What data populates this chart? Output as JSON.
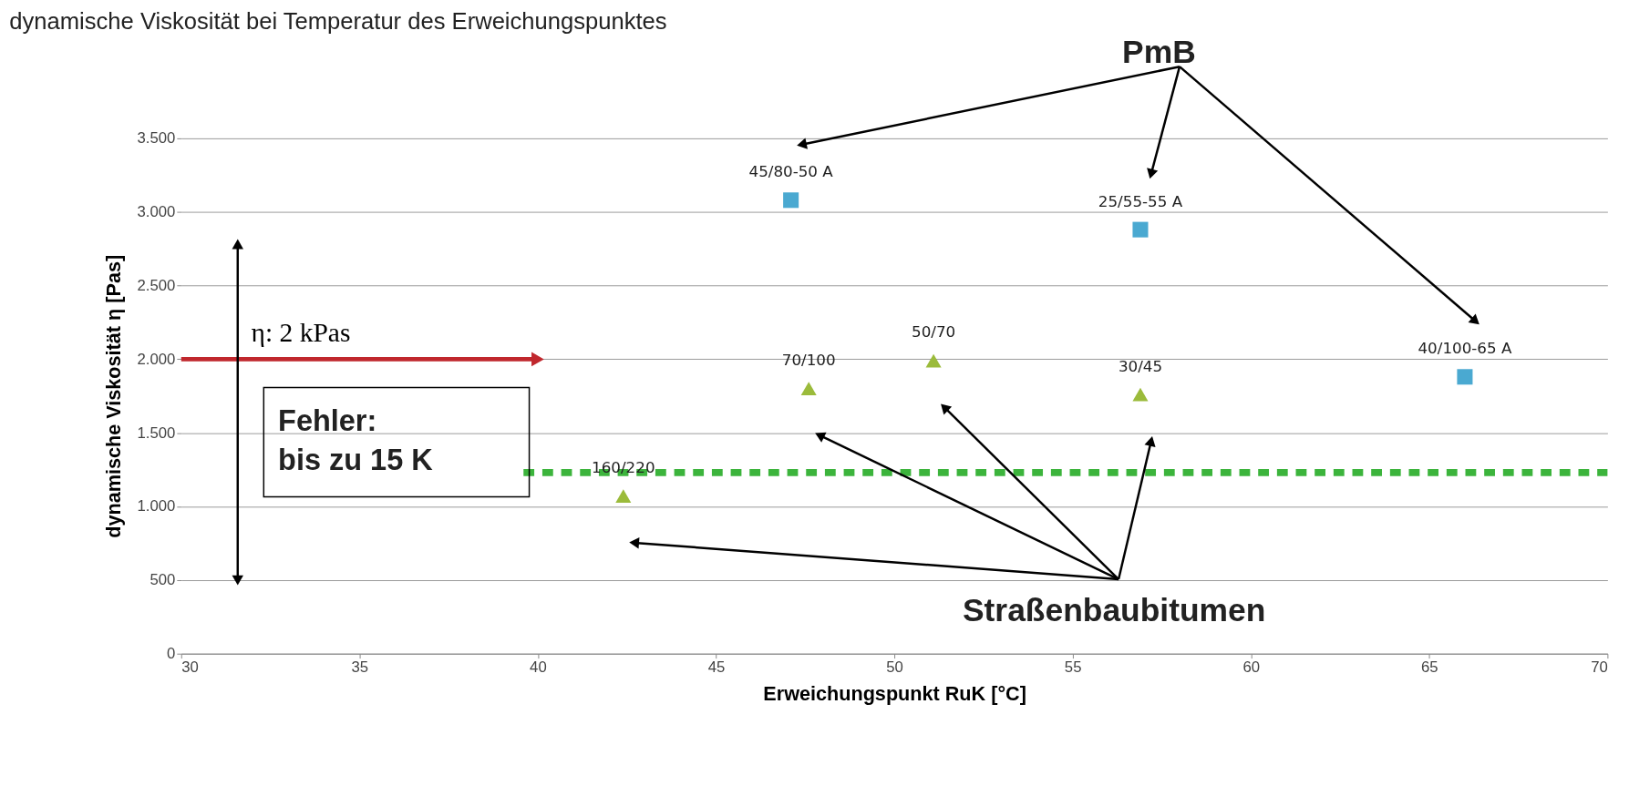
{
  "chart_data": {
    "type": "scatter",
    "title": "dynamische Viskosität bei Temperatur des Erweichungspunktes",
    "xlabel": "Erweichungspunkt RuK [°C]",
    "ylabel": "dynamische Viskosität η [Pas]",
    "xlim": [
      30,
      70
    ],
    "xticks": [
      30,
      35,
      40,
      45,
      50,
      55,
      60,
      65,
      70
    ],
    "ylim": [
      0,
      3500
    ],
    "yticks": [
      {
        "value": 0,
        "label": "0"
      },
      {
        "value": 500,
        "label": "500"
      },
      {
        "value": 1000,
        "label": "1.000"
      },
      {
        "value": 1500,
        "label": "1.500"
      },
      {
        "value": 2000,
        "label": "2.000"
      },
      {
        "value": 2500,
        "label": "2.500"
      },
      {
        "value": 3000,
        "label": "3.000"
      },
      {
        "value": 3500,
        "label": "3.500"
      }
    ],
    "grid": "y",
    "legend": false,
    "series": [
      {
        "type": "scatter",
        "marker": "square",
        "color": "#4aa9d1",
        "x": [
          47.1,
          56.9,
          66.0
        ],
        "values": [
          3080,
          2880,
          1880
        ]
      },
      {
        "type": "scatter",
        "marker": "triangle",
        "color": "#9bbb3b",
        "x": [
          42.4,
          47.6,
          51.1,
          56.9
        ],
        "values": [
          1070,
          1800,
          1990,
          1760
        ]
      },
      {
        "type": "line",
        "name": "η: 2 kPas",
        "color": "#c0272d",
        "x": [
          30,
          40
        ],
        "values": [
          2000,
          2000
        ],
        "line_style": "solid"
      },
      {
        "type": "line",
        "color": "#3cb43c",
        "x": [
          39.6,
          70
        ],
        "values": [
          1230,
          1230
        ],
        "line_style": "dashed"
      }
    ],
    "annotations": [
      {
        "text": "45/80-50 A",
        "x": 47.1,
        "y": 3080
      },
      {
        "text": "25/55-55 A",
        "x": 56.9,
        "y": 2880
      },
      {
        "text": "40/100-65 A",
        "x": 66.0,
        "y": 1880
      },
      {
        "text": "160/220",
        "x": 42.4,
        "y": 1070
      },
      {
        "text": "70/100",
        "x": 47.6,
        "y": 1800
      },
      {
        "text": "50/70",
        "x": 51.1,
        "y": 1990
      },
      {
        "text": "30/45",
        "x": 56.9,
        "y": 1760
      },
      "PmB",
      "Straßenbaubitumen",
      "Fehler:\nbis zu 15 K"
    ]
  }
}
